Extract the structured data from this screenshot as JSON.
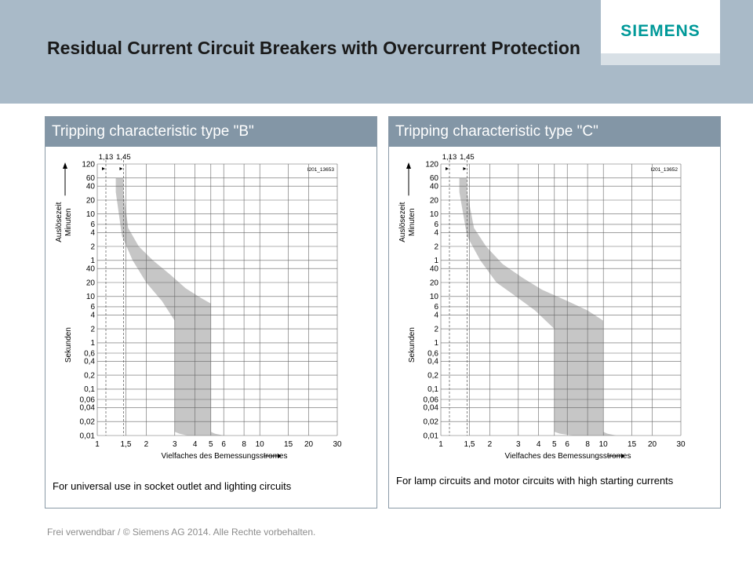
{
  "header": {
    "title": "Residual Current Circuit Breakers with Overcurrent Protection",
    "logo": "SIEMENS",
    "background_color": "#a9bac8",
    "logo_color": "#009999"
  },
  "footer": {
    "text": "Frei verwendbar / © Siemens AG 2014. Alle Rechte vorbehalten."
  },
  "chart_data": [
    {
      "type": "area",
      "panel_title": "Tripping characteristic type \"B\"",
      "caption": "For universal use in socket outlet and lighting circuits",
      "drawing_id": "I201_13653",
      "xlabel": "Vielfaches des Bemessungsstromes",
      "ylabel_minutes": "Auslösezeit Minuten",
      "ylabel_seconds": "Sekunden",
      "x_ticks": [
        "1",
        "1,5",
        "2",
        "3",
        "4",
        "5",
        "6",
        "8",
        "10",
        "15",
        "20",
        "30"
      ],
      "x_tick_values": [
        1,
        1.5,
        2,
        3,
        4,
        5,
        6,
        8,
        10,
        15,
        20,
        30
      ],
      "y_ticks_minutes": [
        "120",
        "60",
        "40",
        "20",
        "10",
        "6",
        "4",
        "2",
        "1"
      ],
      "y_ticks_seconds": [
        "40",
        "20",
        "10",
        "6",
        "4",
        "2",
        "1",
        "0,6",
        "0,4",
        "0,2",
        "0,1",
        "0,06",
        "0,04",
        "0,02",
        "0,01"
      ],
      "markers": [
        "1,13",
        "1,45"
      ],
      "marker_values": [
        1.13,
        1.45
      ],
      "xlim": [
        1,
        30
      ],
      "ylim_seconds": [
        0.01,
        7200
      ],
      "scale": "log-log",
      "grid": true,
      "fill_color": "#c6c6c6",
      "band": {
        "upper_x_mult": [
          1.45,
          1.45,
          1.55,
          1.8,
          2.2,
          2.8,
          3.5,
          4.2,
          5,
          5,
          5.3,
          6
        ],
        "upper_time_s": [
          3600,
          1800,
          300,
          120,
          60,
          30,
          15,
          10,
          7,
          0.012,
          0.011,
          0.01
        ],
        "lower_x_mult": [
          1.3,
          1.3,
          1.42,
          1.65,
          2,
          2.5,
          3,
          3,
          3.2,
          3.6
        ],
        "lower_time_s": [
          3600,
          1800,
          200,
          60,
          20,
          8,
          3,
          0.012,
          0.011,
          0.01
        ]
      }
    },
    {
      "type": "area",
      "panel_title": "Tripping characteristic type \"C\"",
      "caption": "For lamp circuits and motor circuits with high starting currents",
      "drawing_id": "I201_13652",
      "xlabel": "Vielfaches des Bemessungsstromes",
      "ylabel_minutes": "Auslösezeit Minuten",
      "ylabel_seconds": "Sekunden",
      "x_ticks": [
        "1",
        "1,5",
        "2",
        "3",
        "4",
        "5",
        "6",
        "8",
        "10",
        "15",
        "20",
        "30"
      ],
      "x_tick_values": [
        1,
        1.5,
        2,
        3,
        4,
        5,
        6,
        8,
        10,
        15,
        20,
        30
      ],
      "y_ticks_minutes": [
        "120",
        "60",
        "40",
        "20",
        "10",
        "6",
        "4",
        "2",
        "1"
      ],
      "y_ticks_seconds": [
        "40",
        "20",
        "10",
        "6",
        "4",
        "2",
        "1",
        "0,6",
        "0,4",
        "0,2",
        "0,1",
        "0,06",
        "0,04",
        "0,02",
        "0,01"
      ],
      "markers": [
        "1,13",
        "1,45"
      ],
      "marker_values": [
        1.13,
        1.45
      ],
      "xlim": [
        1,
        30
      ],
      "ylim_seconds": [
        0.01,
        7200
      ],
      "scale": "log-log",
      "grid": true,
      "fill_color": "#c6c6c6",
      "band": {
        "upper_x_mult": [
          1.45,
          1.45,
          1.6,
          1.9,
          2.4,
          3.2,
          4.2,
          6,
          8,
          10,
          10,
          10.6,
          12
        ],
        "upper_time_s": [
          3600,
          1800,
          300,
          120,
          50,
          25,
          14,
          8,
          5,
          3,
          0.012,
          0.011,
          0.01
        ],
        "lower_x_mult": [
          1.3,
          1.3,
          1.45,
          1.75,
          2.2,
          2.9,
          3.8,
          5,
          5,
          5.4,
          6.5
        ],
        "lower_time_s": [
          3600,
          1800,
          200,
          60,
          20,
          10,
          5,
          2,
          0.012,
          0.011,
          0.01
        ]
      }
    }
  ]
}
